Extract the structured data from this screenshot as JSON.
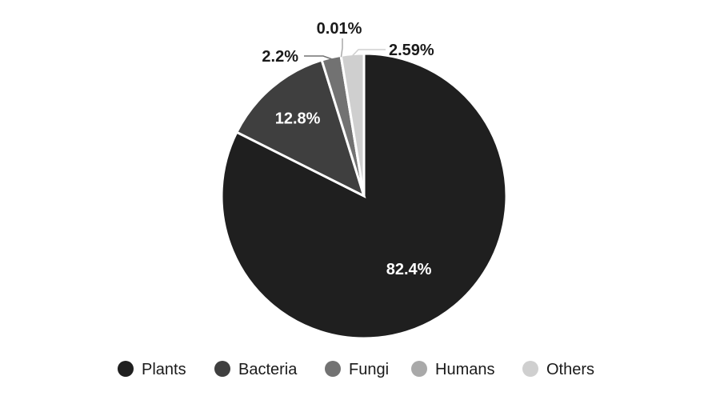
{
  "chart_data": {
    "type": "pie",
    "title": "",
    "start_angle_deg": 0,
    "direction": "clockwise",
    "legend_position": "bottom",
    "series": [
      {
        "name": "",
        "slices": [
          {
            "label": "Plants",
            "value": 82.4,
            "display": "82.4%",
            "color": "#1f1f1f",
            "label_style": "inside",
            "label_color": "#ffffff"
          },
          {
            "label": "Bacteria",
            "value": 12.8,
            "display": "12.8%",
            "color": "#3f3f3f",
            "label_style": "inside",
            "label_color": "#ffffff"
          },
          {
            "label": "Fungi",
            "value": 2.2,
            "display": "2.2%",
            "color": "#727272",
            "label_style": "outside",
            "label_color": "#1a1a1a",
            "line_color": "#727272"
          },
          {
            "label": "Humans",
            "value": 0.01,
            "display": "0.01%",
            "color": "#a9a9a9",
            "label_style": "outside",
            "label_color": "#1a1a1a",
            "line_color": "#a9a9a9"
          },
          {
            "label": "Others",
            "value": 2.59,
            "display": "2.59%",
            "color": "#cfcfcf",
            "label_style": "outside",
            "label_color": "#1a1a1a",
            "line_color": "#cfcfcf"
          }
        ]
      }
    ]
  }
}
